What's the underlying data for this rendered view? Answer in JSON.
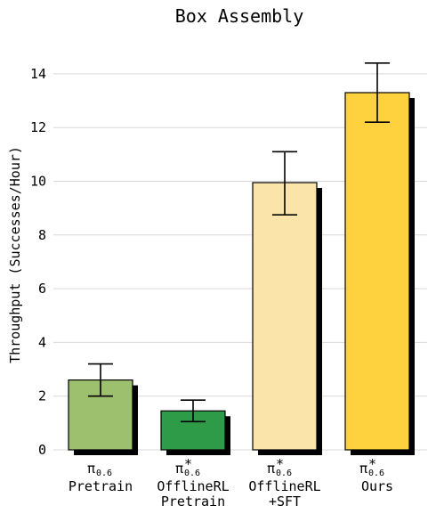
{
  "chart_data": {
    "type": "bar",
    "title": "Box Assembly",
    "xlabel": "",
    "ylabel": "Throughput (Successes/Hour)",
    "ylim": [
      0,
      15
    ],
    "yticks": [
      0,
      2,
      4,
      6,
      8,
      10,
      12,
      14
    ],
    "grid": "horizontal",
    "legend": "none",
    "categories": [
      {
        "symbol": "π",
        "sup": "",
        "sub": "0.6",
        "lines": [
          "Pretrain"
        ],
        "value": 2.6,
        "err_low": 2.0,
        "err_high": 3.2,
        "color": "#9dc06f"
      },
      {
        "symbol": "π",
        "sup": "*",
        "sub": "0.6",
        "lines": [
          "OfflineRL",
          "Pretrain"
        ],
        "value": 1.45,
        "err_low": 1.05,
        "err_high": 1.85,
        "color": "#2e9b48"
      },
      {
        "symbol": "π",
        "sup": "*",
        "sub": "0.6",
        "lines": [
          "OfflineRL",
          "+SFT"
        ],
        "value": 9.95,
        "err_low": 8.75,
        "err_high": 11.1,
        "color": "#fae4aa"
      },
      {
        "symbol": "π",
        "sup": "*",
        "sub": "0.6",
        "lines": [
          "Ours"
        ],
        "value": 13.3,
        "err_low": 12.2,
        "err_high": 14.4,
        "color": "#fed23f"
      }
    ]
  }
}
